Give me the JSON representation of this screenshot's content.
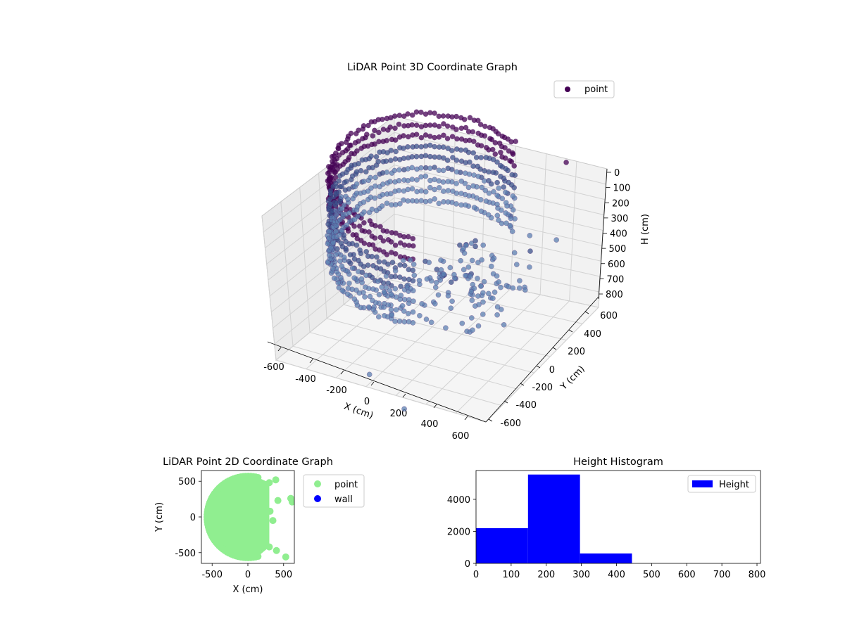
{
  "colors": {
    "point3d_dark": "#440154",
    "point3d_mid": "#3b528b",
    "point3d_light": "#5b7fb0",
    "point2d": "#90ee90",
    "wall": "#0000ff",
    "histogram": "#0000ff",
    "pane": "#f2f2f2",
    "grid": "#d3d3d3"
  },
  "chart_data": [
    {
      "type": "scatter",
      "title": "LiDAR Point 3D Coordinate Graph",
      "xlabel": "X (cm)",
      "ylabel": "Y (cm)",
      "zlabel": "H (cm)",
      "xlim": [
        -700,
        700
      ],
      "ylim": [
        -650,
        700
      ],
      "zlim": [
        800,
        0
      ],
      "x_ticks": [
        "-600",
        "-400",
        "-200",
        "0",
        "200",
        "400",
        "600"
      ],
      "y_ticks": [
        "-600",
        "-400",
        "-200",
        "0",
        "200",
        "400",
        "600"
      ],
      "z_ticks": [
        "0",
        "100",
        "200",
        "300",
        "400",
        "500",
        "600",
        "700",
        "800"
      ],
      "z_inverted": true,
      "grid": true,
      "legend": {
        "position": "top-right",
        "entries": [
          "point"
        ]
      },
      "series": [
        {
          "name": "point",
          "shape": "partial cylindrical shell of radius about 560 cm, height about 150 to 450 cm, open toward +X",
          "outliers": [
            {
              "x": 600,
              "y": 500,
              "h": 150
            },
            {
              "x": 580,
              "y": 420,
              "h": 380
            },
            {
              "x": 500,
              "y": 250,
              "h": 330
            },
            {
              "x": 430,
              "y": 150,
              "h": 250
            },
            {
              "x": 300,
              "y": -400,
              "h": 300
            },
            {
              "x": -100,
              "y": -550,
              "h": 650
            },
            {
              "x": 150,
              "y": -600,
              "h": 700
            }
          ]
        }
      ]
    },
    {
      "type": "scatter",
      "title": "LiDAR Point 2D Coordinate Graph",
      "xlabel": "X (cm)",
      "ylabel": "Y (cm)",
      "xlim": [
        -650,
        650
      ],
      "ylim": [
        -650,
        650
      ],
      "x_ticks": [
        "-500",
        "0",
        "500"
      ],
      "y_ticks": [
        "500",
        "0",
        "-500"
      ],
      "grid": false,
      "legend": {
        "position": "outside-right",
        "entries": [
          "point",
          "wall"
        ]
      },
      "series": [
        {
          "name": "point",
          "shape": "filled half-disc of radius about 570 cm covering x from -570 to 300",
          "outliers": [
            {
              "x": 390,
              "y": 520
            },
            {
              "x": 420,
              "y": 230
            },
            {
              "x": 600,
              "y": 260
            },
            {
              "x": 620,
              "y": 210
            },
            {
              "x": 400,
              "y": -470
            },
            {
              "x": 530,
              "y": -560
            },
            {
              "x": 310,
              "y": 80
            },
            {
              "x": 350,
              "y": -50
            }
          ]
        },
        {
          "name": "wall",
          "x": [],
          "y": []
        }
      ]
    },
    {
      "type": "bar",
      "title": "Height Histogram",
      "xlabel": "",
      "ylabel": "",
      "bins": [
        {
          "start": 0,
          "end": 148,
          "count": 2200
        },
        {
          "start": 148,
          "end": 296,
          "count": 5550
        },
        {
          "start": 296,
          "end": 444,
          "count": 620
        },
        {
          "start": 444,
          "end": 592,
          "count": 0
        },
        {
          "start": 592,
          "end": 740,
          "count": 0
        }
      ],
      "xlim": [
        0,
        810
      ],
      "ylim": [
        0,
        5800
      ],
      "x_ticks": [
        "0",
        "100",
        "200",
        "300",
        "400",
        "500",
        "600",
        "700",
        "800"
      ],
      "y_ticks": [
        "0",
        "2000",
        "4000"
      ],
      "legend": {
        "position": "top-right",
        "entries": [
          "Height"
        ]
      }
    }
  ]
}
